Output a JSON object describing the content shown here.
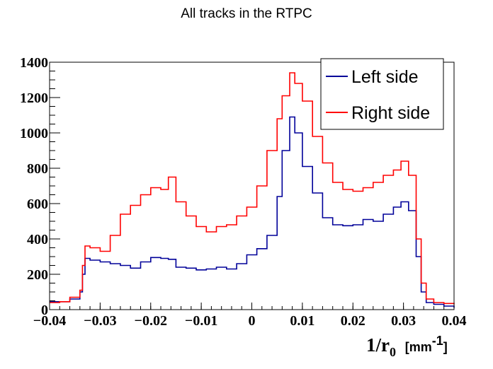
{
  "chart_data": {
    "type": "line",
    "title": "All tracks in the RTPC",
    "xlabel": "1/r",
    "xlabel_subscript": "0",
    "xlabel_unit_open": "[",
    "xlabel_unit": "mm",
    "xlabel_unit_exp": "-1",
    "xlabel_unit_close": "]",
    "ylabel": "",
    "xlim": [
      -0.04,
      0.04
    ],
    "ylim": [
      0,
      1400
    ],
    "xticks": [
      -0.04,
      -0.03,
      -0.02,
      -0.01,
      0,
      0.01,
      0.02,
      0.03,
      0.04
    ],
    "xtick_labels": [
      "−0.04",
      "−0.03",
      "−0.02",
      "−0.01",
      "0",
      "0.01",
      "0.02",
      "0.03",
      "0.04"
    ],
    "yticks": [
      0,
      200,
      400,
      600,
      800,
      1000,
      1200,
      1400
    ],
    "ytick_labels": [
      "0",
      "200",
      "400",
      "600",
      "800",
      "1000",
      "1200",
      "1400"
    ],
    "legend": "top-right",
    "x": [
      -0.04,
      -0.038,
      -0.036,
      -0.034,
      -0.0335,
      -0.033,
      -0.032,
      -0.03,
      -0.028,
      -0.026,
      -0.024,
      -0.022,
      -0.02,
      -0.018,
      -0.0165,
      -0.015,
      -0.013,
      -0.011,
      -0.009,
      -0.007,
      -0.005,
      -0.003,
      -0.001,
      0.001,
      0.003,
      0.005,
      0.006,
      0.0075,
      0.0085,
      0.01,
      0.012,
      0.014,
      0.016,
      0.018,
      0.02,
      0.022,
      0.024,
      0.026,
      0.028,
      0.0295,
      0.031,
      0.0325,
      0.0335,
      0.0345,
      0.036,
      0.038,
      0.04
    ],
    "series": [
      {
        "name": "Left side",
        "color": "#000099",
        "values": [
          45,
          45,
          60,
          100,
          200,
          290,
          280,
          270,
          260,
          250,
          235,
          270,
          295,
          290,
          285,
          240,
          235,
          225,
          230,
          240,
          230,
          260,
          310,
          345,
          420,
          640,
          900,
          1090,
          1000,
          810,
          660,
          520,
          480,
          475,
          480,
          510,
          500,
          540,
          580,
          610,
          560,
          300,
          100,
          40,
          30,
          20,
          10
        ]
      },
      {
        "name": "Right side",
        "color": "#ff0000",
        "values": [
          40,
          45,
          70,
          110,
          250,
          360,
          350,
          330,
          420,
          540,
          590,
          650,
          690,
          680,
          750,
          610,
          530,
          470,
          440,
          470,
          480,
          530,
          580,
          700,
          900,
          1080,
          1210,
          1340,
          1280,
          1180,
          980,
          830,
          720,
          680,
          670,
          690,
          720,
          760,
          790,
          840,
          760,
          400,
          150,
          60,
          40,
          35,
          30
        ]
      }
    ]
  }
}
